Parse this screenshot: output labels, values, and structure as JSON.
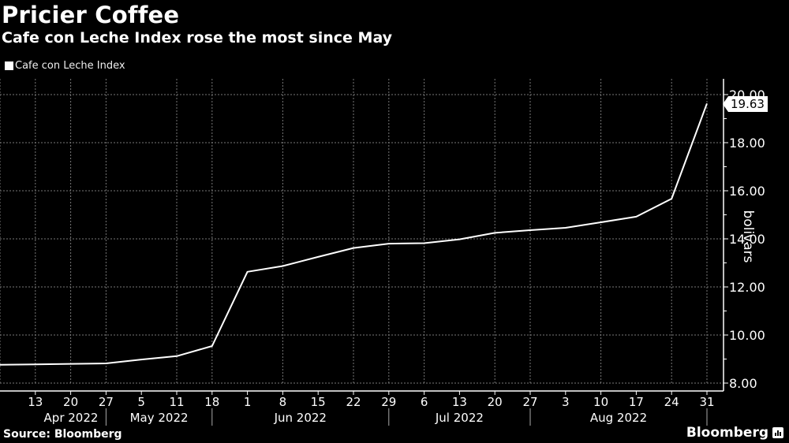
{
  "header": {
    "title": "Pricier Coffee",
    "subtitle": "Cafe con Leche Index rose the most since May"
  },
  "legend": {
    "label": "Cafe con Leche Index",
    "color": "#ffffff"
  },
  "footer": {
    "source": "Source: Bloomberg",
    "brand": "Bloomberg"
  },
  "last_value_label": "19.63",
  "chart_data": {
    "type": "line",
    "title": "Pricier Coffee",
    "subtitle": "Cafe con Leche Index rose the most since May",
    "xlabel": "",
    "ylabel": "bolivars",
    "ylim": [
      8,
      20
    ],
    "y_ticks": [
      "8.00",
      "10.00",
      "12.00",
      "14.00",
      "16.00",
      "18.00",
      "20.00"
    ],
    "x_tick_labels": [
      "13",
      "20",
      "27",
      "5",
      "11",
      "18",
      "1",
      "8",
      "15",
      "22",
      "29",
      "6",
      "13",
      "20",
      "27",
      "3",
      "10",
      "17",
      "24",
      "31"
    ],
    "x_month_labels": [
      "Apr 2022",
      "May 2022",
      "Jun 2022",
      "Jul 2022",
      "Aug 2022"
    ],
    "grid": true,
    "legend_position": "top-left",
    "series": [
      {
        "name": "Cafe con Leche Index",
        "x": [
          "2022-04-06",
          "2022-04-13",
          "2022-04-20",
          "2022-04-27",
          "2022-05-05",
          "2022-05-11",
          "2022-05-18",
          "2022-06-01",
          "2022-06-08",
          "2022-06-15",
          "2022-06-22",
          "2022-06-29",
          "2022-07-06",
          "2022-07-13",
          "2022-07-20",
          "2022-07-27",
          "2022-08-03",
          "2022-08-10",
          "2022-08-17",
          "2022-08-24",
          "2022-08-31"
        ],
        "values": [
          8.76,
          8.78,
          8.8,
          8.82,
          8.98,
          9.12,
          9.54,
          12.63,
          12.87,
          13.25,
          13.62,
          13.8,
          13.82,
          13.98,
          14.25,
          14.36,
          14.46,
          14.69,
          14.92,
          15.67,
          19.63
        ]
      }
    ],
    "annotations": [
      {
        "text": "19.63",
        "x": "2022-08-31",
        "y": 19.63
      }
    ]
  }
}
